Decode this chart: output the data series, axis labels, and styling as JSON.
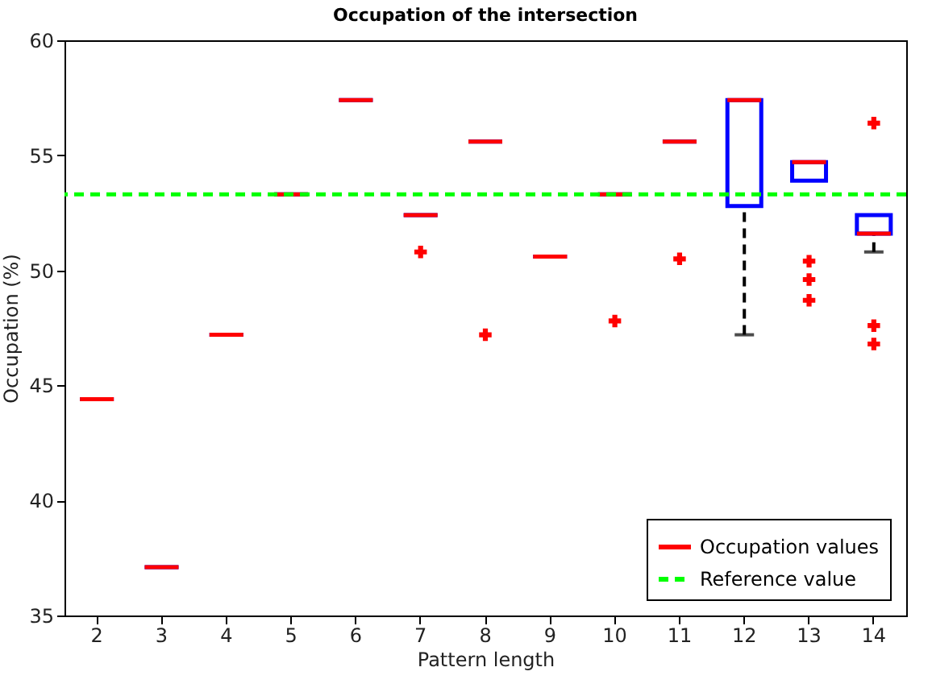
{
  "chart_data": {
    "type": "box",
    "title": "Occupation of the intersection",
    "xlabel": "Pattern length",
    "ylabel": "Occupation (%)",
    "categories": [
      "2",
      "3",
      "4",
      "5",
      "6",
      "7",
      "8",
      "9",
      "10",
      "11",
      "12",
      "13",
      "14"
    ],
    "ylim": [
      35,
      60
    ],
    "yticks": [
      35,
      40,
      45,
      50,
      55,
      60
    ],
    "grid": false,
    "legend": "bottom right",
    "marker": "cross",
    "series": [
      {
        "name": "Occupation values",
        "color": "#ff0000",
        "boxes": [
          {
            "low": 44.4,
            "q1": 44.4,
            "median": 44.4,
            "q3": 44.4,
            "high": 44.4
          },
          {
            "low": 37.1,
            "q1": 37.1,
            "median": 37.1,
            "q3": 37.1,
            "high": 37.1
          },
          {
            "low": 47.2,
            "q1": 47.2,
            "median": 47.2,
            "q3": 47.2,
            "high": 47.2
          },
          {
            "low": 53.3,
            "q1": 53.3,
            "median": 53.3,
            "q3": 53.3,
            "high": 53.3
          },
          {
            "low": 57.4,
            "q1": 57.4,
            "median": 57.4,
            "q3": 57.4,
            "high": 57.4
          },
          {
            "low": 52.4,
            "q1": 52.4,
            "median": 52.4,
            "q3": 52.4,
            "high": 52.4,
            "outliers": [
              50.8
            ]
          },
          {
            "low": 55.6,
            "q1": 55.6,
            "median": 55.6,
            "q3": 55.6,
            "high": 55.6,
            "outliers": [
              47.2
            ]
          },
          {
            "low": 50.6,
            "q1": 50.6,
            "median": 50.6,
            "q3": 50.6,
            "high": 50.6
          },
          {
            "low": 53.3,
            "q1": 53.3,
            "median": 53.3,
            "q3": 53.3,
            "high": 53.3,
            "outliers": [
              47.8
            ]
          },
          {
            "low": 55.6,
            "q1": 55.6,
            "median": 55.6,
            "q3": 55.6,
            "high": 55.6,
            "outliers": [
              50.5
            ]
          },
          {
            "low": 47.2,
            "q1": 52.8,
            "median": 57.4,
            "q3": 57.4,
            "high": 57.4
          },
          {
            "low": 53.9,
            "q1": 53.9,
            "median": 54.7,
            "q3": 54.7,
            "high": 54.7,
            "outliers": [
              50.4,
              49.6,
              48.7
            ]
          },
          {
            "low": 50.8,
            "q1": 51.6,
            "median": 51.6,
            "q3": 52.4,
            "high": 52.4,
            "outliers": [
              56.4,
              47.6,
              46.8
            ]
          }
        ]
      }
    ],
    "ref_lines": [
      {
        "axis": "y",
        "value": 53.3,
        "label": "Reference value",
        "color": "#00ff00",
        "line_style": "dashed"
      }
    ]
  }
}
